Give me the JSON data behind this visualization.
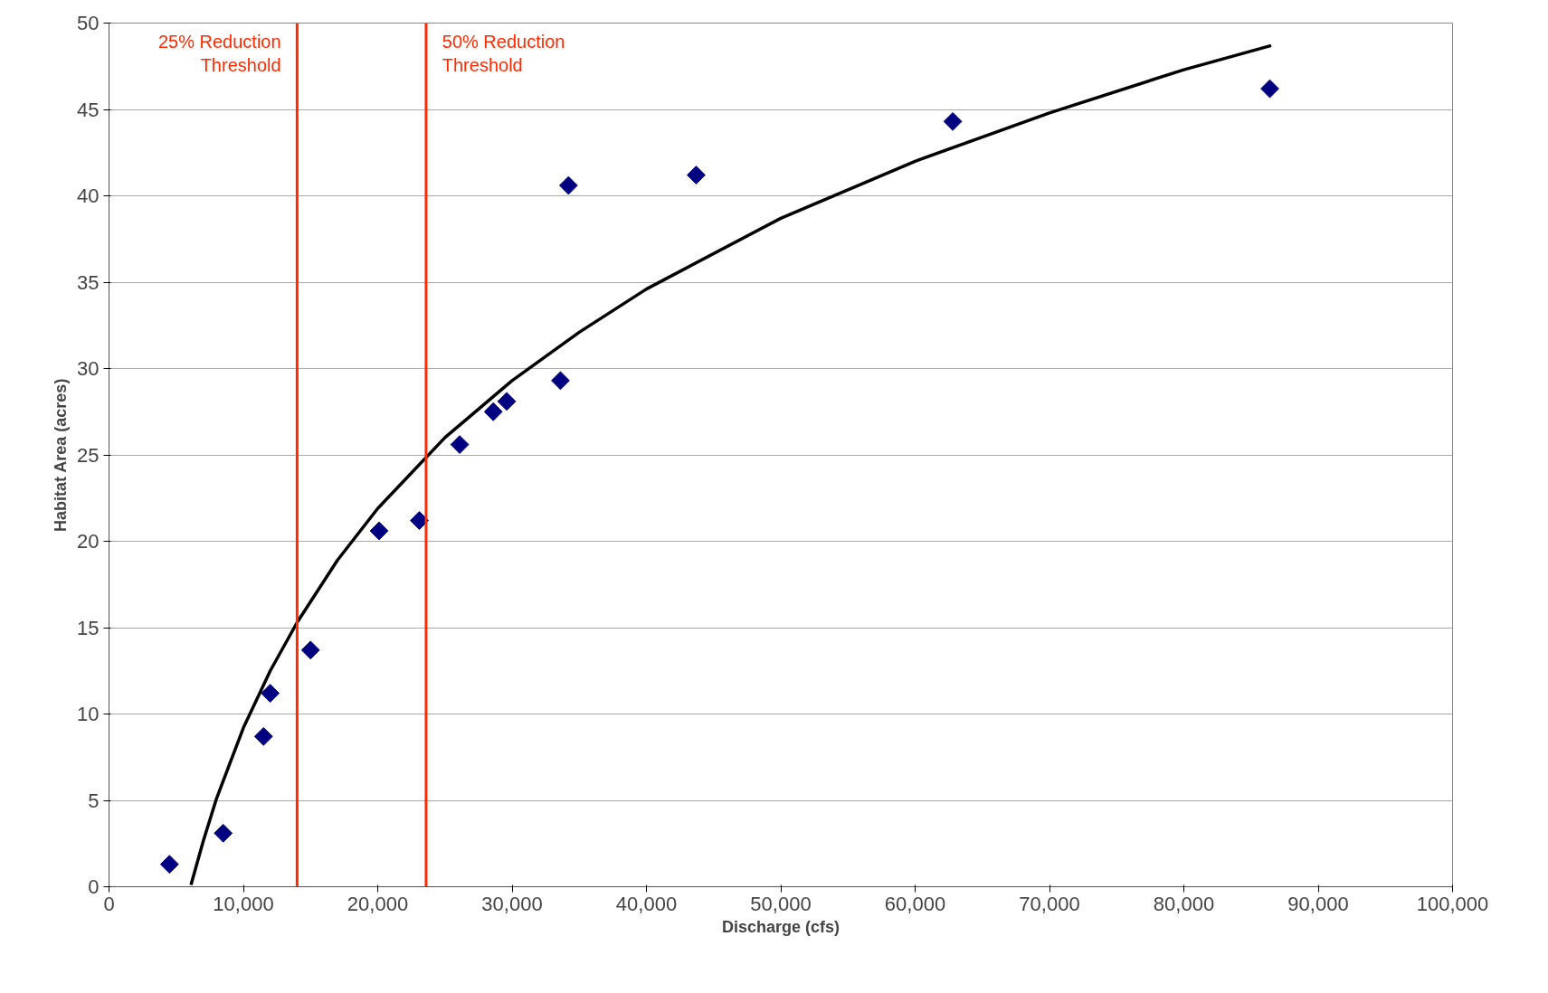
{
  "chart_data": {
    "type": "scatter",
    "xlabel": "Discharge (cfs)",
    "ylabel": "Habitat Area (acres)",
    "xlim": [
      0,
      100000
    ],
    "ylim": [
      0,
      50
    ],
    "xticks": [
      {
        "value": 0,
        "label": "0"
      },
      {
        "value": 10000,
        "label": "10,000"
      },
      {
        "value": 20000,
        "label": "20,000"
      },
      {
        "value": 30000,
        "label": "30,000"
      },
      {
        "value": 40000,
        "label": "40,000"
      },
      {
        "value": 50000,
        "label": "50,000"
      },
      {
        "value": 60000,
        "label": "60,000"
      },
      {
        "value": 70000,
        "label": "70,000"
      },
      {
        "value": 80000,
        "label": "80,000"
      },
      {
        "value": 90000,
        "label": "90,000"
      },
      {
        "value": 100000,
        "label": "100,000"
      }
    ],
    "yticks": [
      0,
      5,
      10,
      15,
      20,
      25,
      30,
      35,
      40,
      45,
      50
    ],
    "grid": "y",
    "series": [
      {
        "marker": "diamond",
        "color": "#000080",
        "x": [
          4500,
          8500,
          11500,
          12000,
          15000,
          20100,
          23100,
          26100,
          28600,
          29600,
          33600,
          34200,
          43700,
          62800,
          86400
        ],
        "values": [
          1.3,
          3.1,
          8.7,
          11.2,
          13.7,
          20.6,
          21.2,
          25.6,
          27.5,
          28.1,
          29.3,
          40.6,
          41.2,
          44.3,
          46.2
        ]
      },
      {
        "type": "line",
        "marker": "none",
        "color": "#000000",
        "x": [
          6100,
          7000,
          8000,
          10000,
          12000,
          14000,
          17000,
          20000,
          25000,
          30000,
          35000,
          40000,
          50000,
          60000,
          70000,
          80000,
          86500
        ],
        "values": [
          0.1,
          2.6,
          5.1,
          9.2,
          12.5,
          15.3,
          18.9,
          21.9,
          26.0,
          29.3,
          32.1,
          34.6,
          38.7,
          42.0,
          44.8,
          47.3,
          48.7
        ]
      }
    ],
    "ref_lines": [
      {
        "axis": "x",
        "value": 14000,
        "label": "25% Reduction\nThreshold",
        "color": "#ff2a00"
      },
      {
        "axis": "x",
        "value": 23600,
        "label": "50% Reduction\nThreshold",
        "color": "#ff2a00"
      }
    ]
  }
}
